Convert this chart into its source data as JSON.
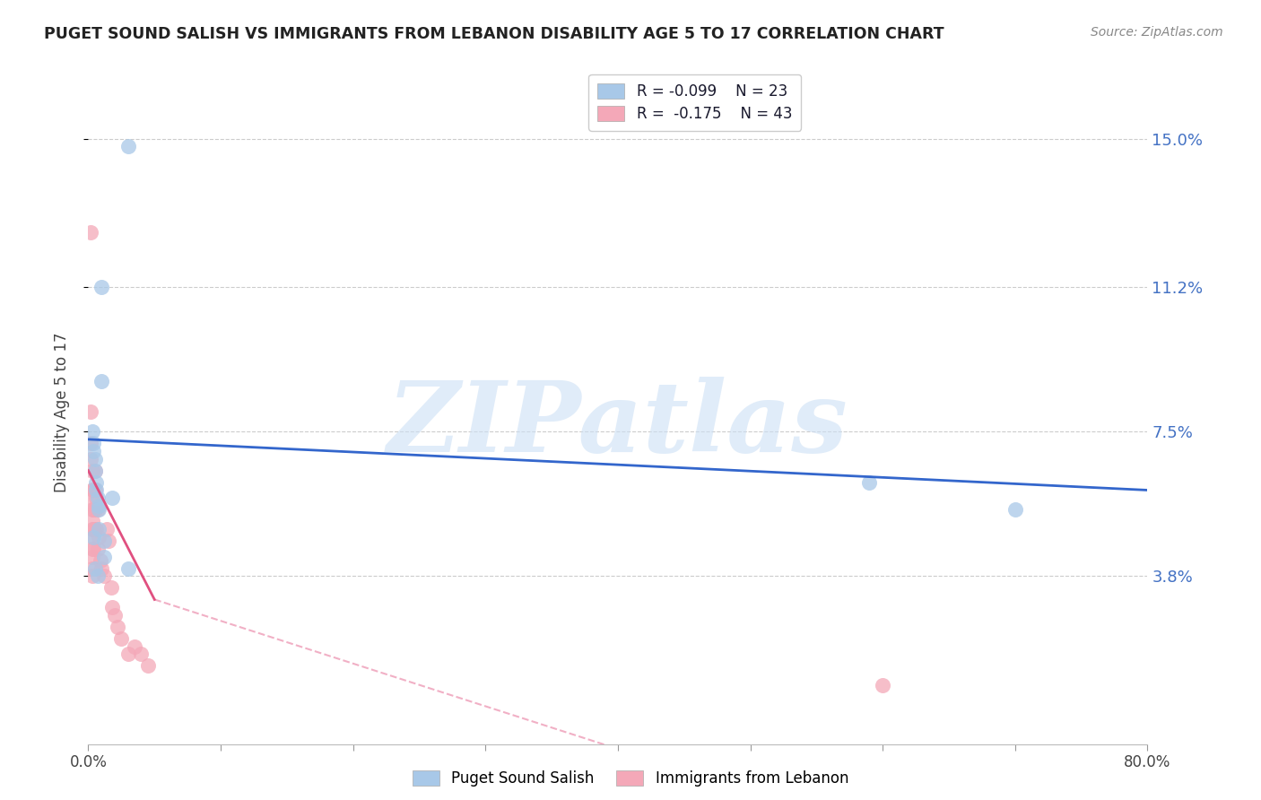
{
  "title": "PUGET SOUND SALISH VS IMMIGRANTS FROM LEBANON DISABILITY AGE 5 TO 17 CORRELATION CHART",
  "source": "Source: ZipAtlas.com",
  "ylabel": "Disability Age 5 to 17",
  "xlim": [
    0.0,
    0.8
  ],
  "ylim": [
    -0.005,
    0.165
  ],
  "yticks": [
    0.038,
    0.075,
    0.112,
    0.15
  ],
  "ytick_labels": [
    "3.8%",
    "7.5%",
    "11.2%",
    "15.0%"
  ],
  "xtick_labels": [
    "0.0%",
    "",
    "",
    "",
    "",
    "",
    "",
    "",
    "80.0%"
  ],
  "color_blue": "#a8c8e8",
  "color_pink": "#f4a8b8",
  "color_blue_line": "#3366cc",
  "color_pink_line": "#e05080",
  "legend_R_blue": "R = -0.099",
  "legend_N_blue": "N = 23",
  "legend_R_pink": "R =  -0.175",
  "legend_N_pink": "N = 43",
  "watermark": "ZIPatlas",
  "blue_x": [
    0.03,
    0.01,
    0.01,
    0.003,
    0.004,
    0.004,
    0.005,
    0.005,
    0.006,
    0.006,
    0.007,
    0.008,
    0.008,
    0.008,
    0.012,
    0.012,
    0.018,
    0.03,
    0.59,
    0.7,
    0.004,
    0.005,
    0.007
  ],
  "blue_y": [
    0.148,
    0.112,
    0.088,
    0.075,
    0.072,
    0.07,
    0.068,
    0.065,
    0.062,
    0.06,
    0.058,
    0.056,
    0.055,
    0.05,
    0.047,
    0.043,
    0.058,
    0.04,
    0.062,
    0.055,
    0.048,
    0.04,
    0.038
  ],
  "pink_x": [
    0.002,
    0.002,
    0.002,
    0.002,
    0.003,
    0.003,
    0.003,
    0.003,
    0.003,
    0.003,
    0.003,
    0.003,
    0.003,
    0.003,
    0.003,
    0.004,
    0.004,
    0.004,
    0.004,
    0.005,
    0.005,
    0.005,
    0.005,
    0.006,
    0.006,
    0.007,
    0.007,
    0.008,
    0.009,
    0.01,
    0.012,
    0.014,
    0.015,
    0.017,
    0.018,
    0.02,
    0.022,
    0.025,
    0.03,
    0.035,
    0.04,
    0.045,
    0.6
  ],
  "pink_y": [
    0.126,
    0.08,
    0.072,
    0.068,
    0.065,
    0.06,
    0.058,
    0.055,
    0.052,
    0.05,
    0.048,
    0.045,
    0.043,
    0.04,
    0.038,
    0.06,
    0.055,
    0.05,
    0.045,
    0.065,
    0.06,
    0.055,
    0.05,
    0.058,
    0.05,
    0.055,
    0.045,
    0.048,
    0.042,
    0.04,
    0.038,
    0.05,
    0.047,
    0.035,
    0.03,
    0.028,
    0.025,
    0.022,
    0.018,
    0.02,
    0.018,
    0.015,
    0.01
  ]
}
